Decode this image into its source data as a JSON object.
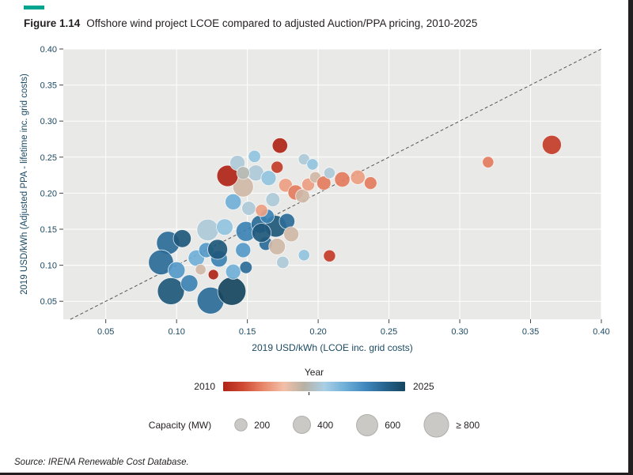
{
  "figure": {
    "label": "Figure 1.14",
    "title": "Offshore wind project LCOE compared to adjusted Auction/PPA pricing, 2010-2025",
    "source": "Source: IRENA Renewable Cost Database.",
    "accent_color": "#00a58f"
  },
  "chart_data": {
    "type": "scatter",
    "title": "Offshore wind project LCOE compared to adjusted Auction/PPA pricing, 2010-2025",
    "xlabel": "2019 USD/kWh (LCOE inc. grid costs)",
    "ylabel": "2019 USD/kWh (Adjusted PPA - lifetime inc. grid costs)",
    "xlim": [
      0.02,
      0.4
    ],
    "ylim": [
      0.025,
      0.4
    ],
    "xticks": [
      0.05,
      0.1,
      0.15,
      0.2,
      0.25,
      0.3,
      0.35,
      0.4
    ],
    "yticks": [
      0.05,
      0.1,
      0.15,
      0.2,
      0.25,
      0.3,
      0.35,
      0.4
    ],
    "grid": true,
    "identity_line": true,
    "plot_bg": "#e9e9e7",
    "grid_color": "#ffffff",
    "axis_text_color": "#1b4a63",
    "color_scale": {
      "label": "Year",
      "min": 2010,
      "max": 2025,
      "stops": [
        "#b02418",
        "#cf4a33",
        "#e8886b",
        "#f3bfa8",
        "#b7b1a4",
        "#a9cfe5",
        "#70b0d8",
        "#4189be",
        "#26648e",
        "#15455f"
      ]
    },
    "size_scale": {
      "label": "Capacity (MW)",
      "values": [
        200,
        400,
        600,
        800
      ],
      "labels": [
        "200",
        "400",
        "600",
        "≥ 800"
      ],
      "swatch_fill": "#cbc9c5",
      "swatch_stroke": "#b0aeaa"
    },
    "points_format": [
      "x",
      "y",
      "year",
      "capacity_mw"
    ],
    "points": [
      [
        0.094,
        0.131,
        2023,
        700
      ],
      [
        0.104,
        0.137,
        2024,
        420
      ],
      [
        0.089,
        0.104,
        2023,
        820
      ],
      [
        0.1,
        0.093,
        2021,
        380
      ],
      [
        0.096,
        0.064,
        2024,
        950
      ],
      [
        0.109,
        0.075,
        2022,
        380
      ],
      [
        0.124,
        0.051,
        2023,
        950
      ],
      [
        0.139,
        0.064,
        2025,
        1050
      ],
      [
        0.114,
        0.11,
        2020,
        350
      ],
      [
        0.121,
        0.121,
        2021,
        300
      ],
      [
        0.13,
        0.109,
        2022,
        360
      ],
      [
        0.126,
        0.087,
        2010,
        140
      ],
      [
        0.117,
        0.094,
        2016,
        150
      ],
      [
        0.14,
        0.091,
        2020,
        300
      ],
      [
        0.149,
        0.097,
        2023,
        200
      ],
      [
        0.147,
        0.121,
        2021,
        300
      ],
      [
        0.122,
        0.149,
        2018,
        620
      ],
      [
        0.134,
        0.153,
        2019,
        360
      ],
      [
        0.149,
        0.147,
        2022,
        520
      ],
      [
        0.159,
        0.157,
        2023,
        420
      ],
      [
        0.17,
        0.154,
        2024,
        620
      ],
      [
        0.178,
        0.161,
        2023,
        320
      ],
      [
        0.164,
        0.168,
        2022,
        260
      ],
      [
        0.163,
        0.13,
        2023,
        240
      ],
      [
        0.171,
        0.126,
        2016,
        360
      ],
      [
        0.181,
        0.143,
        2016,
        300
      ],
      [
        0.175,
        0.104,
        2018,
        200
      ],
      [
        0.19,
        0.114,
        2019,
        170
      ],
      [
        0.208,
        0.113,
        2011,
        190
      ],
      [
        0.14,
        0.188,
        2020,
        340
      ],
      [
        0.151,
        0.179,
        2018,
        260
      ],
      [
        0.16,
        0.176,
        2014,
        200
      ],
      [
        0.168,
        0.191,
        2018,
        260
      ],
      [
        0.147,
        0.209,
        2016,
        560
      ],
      [
        0.136,
        0.224,
        2010,
        600
      ],
      [
        0.143,
        0.242,
        2018,
        300
      ],
      [
        0.156,
        0.228,
        2018,
        340
      ],
      [
        0.165,
        0.221,
        2019,
        300
      ],
      [
        0.171,
        0.236,
        2011,
        190
      ],
      [
        0.177,
        0.211,
        2014,
        250
      ],
      [
        0.184,
        0.201,
        2013,
        300
      ],
      [
        0.189,
        0.196,
        2016,
        260
      ],
      [
        0.193,
        0.212,
        2014,
        220
      ],
      [
        0.198,
        0.222,
        2016,
        170
      ],
      [
        0.204,
        0.214,
        2013,
        260
      ],
      [
        0.208,
        0.228,
        2018,
        170
      ],
      [
        0.217,
        0.219,
        2013,
        310
      ],
      [
        0.228,
        0.222,
        2014,
        280
      ],
      [
        0.237,
        0.214,
        2013,
        210
      ],
      [
        0.173,
        0.266,
        2010,
        310
      ],
      [
        0.19,
        0.247,
        2018,
        170
      ],
      [
        0.196,
        0.24,
        2019,
        170
      ],
      [
        0.32,
        0.243,
        2013,
        170
      ],
      [
        0.365,
        0.267,
        2011,
        480
      ],
      [
        0.155,
        0.251,
        2019,
        200
      ],
      [
        0.147,
        0.228,
        2017,
        220
      ],
      [
        0.129,
        0.122,
        2024,
        520
      ],
      [
        0.16,
        0.145,
        2024,
        480
      ]
    ],
    "legend_year_min_label": "2010",
    "legend_year_max_label": "2025"
  }
}
